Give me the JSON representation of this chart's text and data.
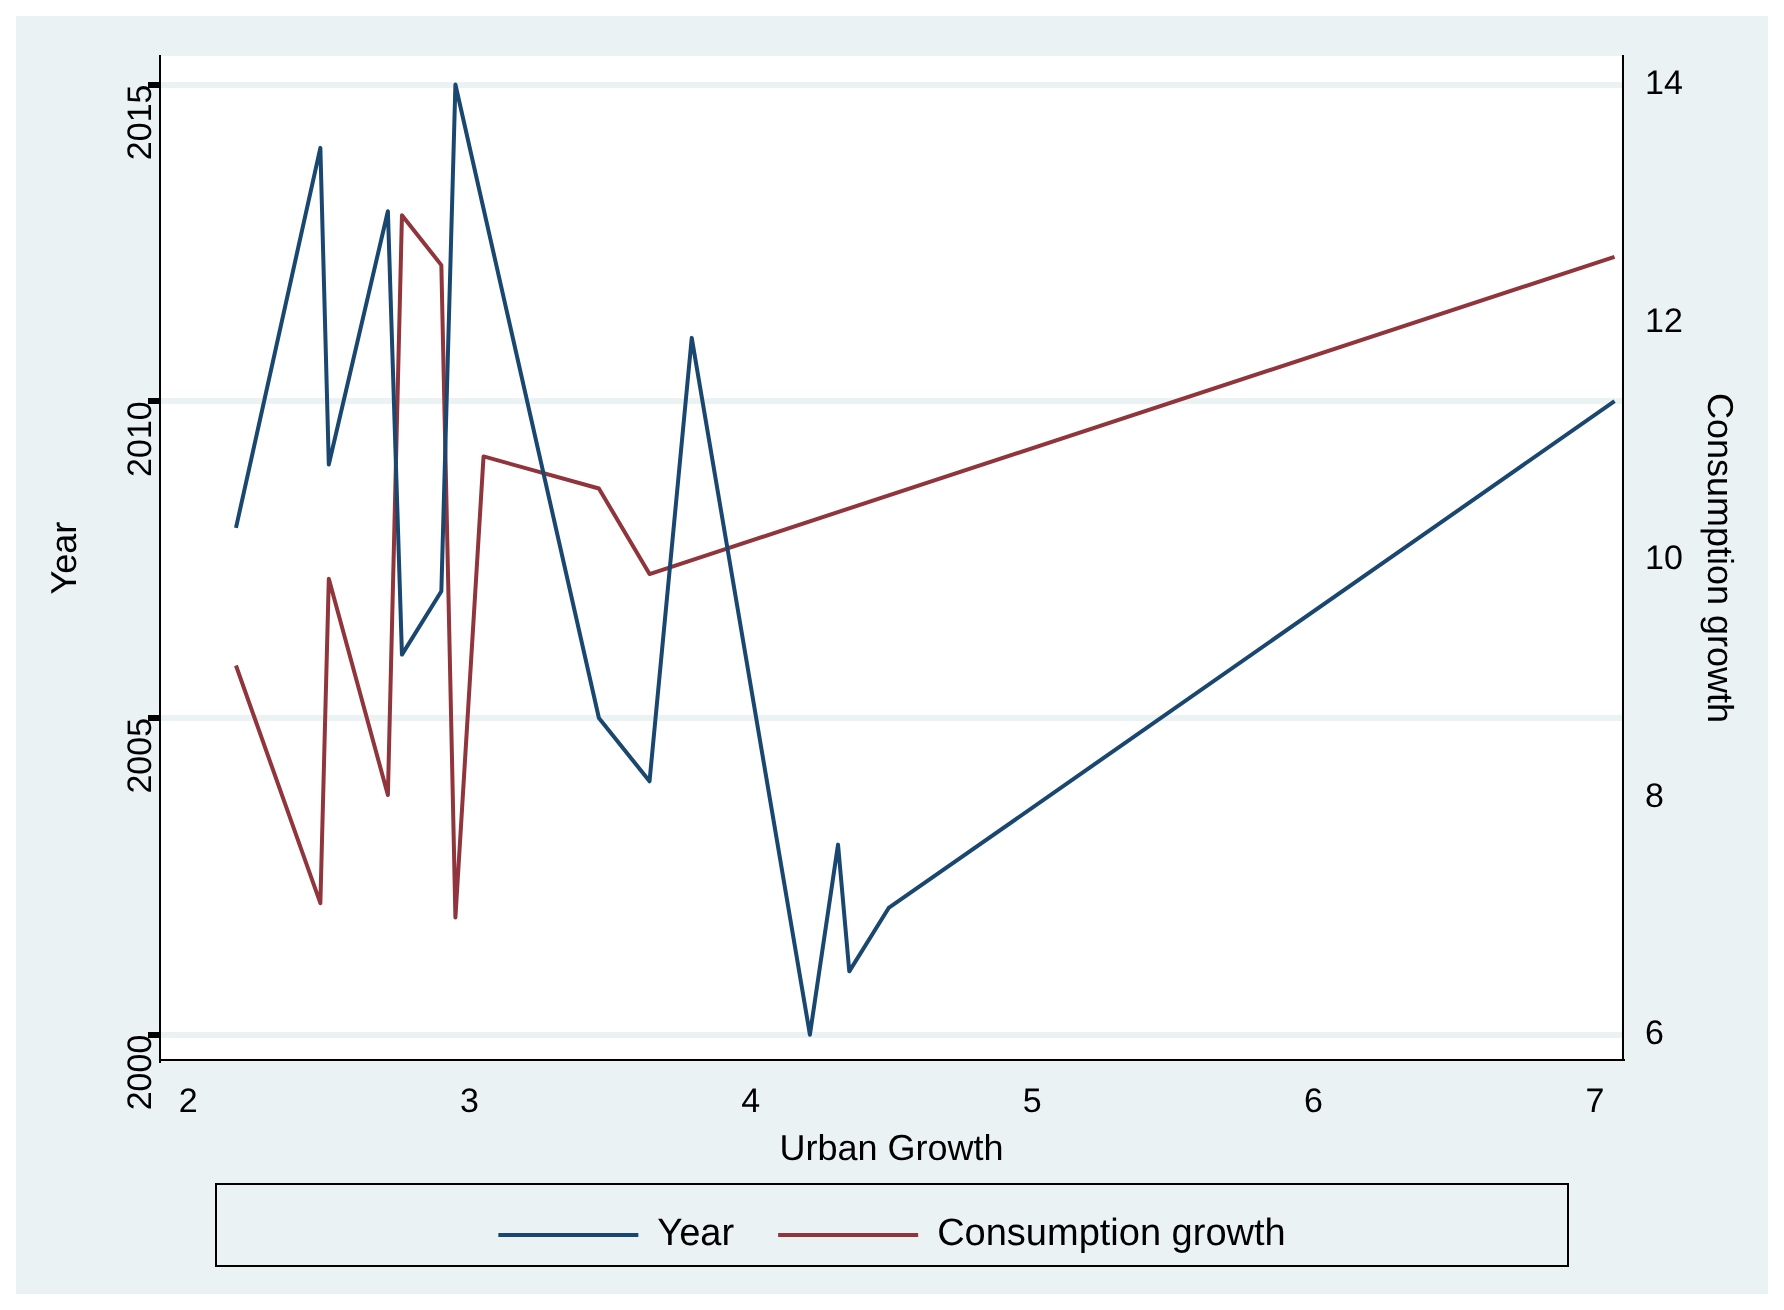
{
  "chart_data": {
    "type": "line",
    "xlabel": "Urban Growth",
    "ylabel": "Year",
    "y2label": "Consumption growth",
    "xlim": [
      1.9,
      7.1
    ],
    "xticks": [
      2,
      3,
      4,
      5,
      6,
      7
    ],
    "ylim": [
      1999.6,
      2015.45
    ],
    "yticks": [
      2000,
      2005,
      2010,
      2015
    ],
    "y2lim": [
      5.79,
      14.24
    ],
    "y2ticks": [
      6,
      8,
      10,
      12,
      14
    ],
    "grid": "y",
    "legend": "bottom",
    "marker": "none",
    "line_style": "solid",
    "series": [
      {
        "name": "Year",
        "color": "#1a476f",
        "x": [
          2.17,
          2.47,
          2.5,
          2.71,
          2.76,
          2.9,
          2.95,
          3.46,
          3.64,
          3.79,
          4.21,
          4.31,
          4.35,
          4.49,
          7.07
        ],
        "values": [
          2008,
          2014,
          2009,
          2013,
          2006,
          2007,
          2015,
          2005,
          2004,
          2011,
          2000,
          2003,
          2001,
          2002,
          2010
        ]
      },
      {
        "name": "Consumption growth",
        "color": "#90353b",
        "axis": "y2",
        "x": [
          2.17,
          2.47,
          2.5,
          2.71,
          2.76,
          2.9,
          2.95,
          3.05,
          3.46,
          3.64,
          7.07
        ],
        "values": [
          9.11,
          7.11,
          9.84,
          8.02,
          12.9,
          12.48,
          6.99,
          10.87,
          10.6,
          9.88,
          12.55
        ]
      }
    ]
  }
}
